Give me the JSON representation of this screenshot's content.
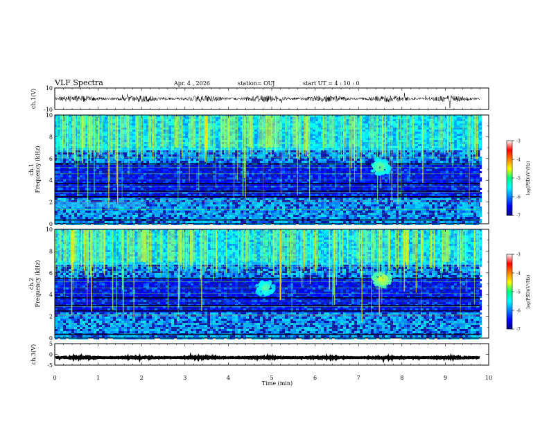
{
  "header": {
    "title": "VLF Spectra",
    "date": "Apr. 4 , 2026",
    "station": "station= OUJ",
    "start": "start  UT =   4 : 10 : 0"
  },
  "chart_data": [
    {
      "type": "line",
      "name": "ch1-waveform",
      "ylabel": "ch.1(V)",
      "ylim": [
        -10,
        10
      ],
      "yticks": [
        "10",
        "-10"
      ],
      "xlim": [
        0,
        10
      ],
      "trace_end": 9.8,
      "trace_level": 0
    },
    {
      "type": "heatmap",
      "name": "ch1-spectrogram",
      "ylabel": "ch.1\nFrequency (kHz)",
      "ylim": [
        0,
        10
      ],
      "yticks": [
        "0",
        "2",
        "4",
        "6",
        "8",
        "10"
      ],
      "xlim": [
        0,
        10
      ],
      "data_end": 9.8,
      "colorbar": {
        "label": "log(PSD)(V²/Hz)",
        "range": [
          -7,
          -3
        ],
        "ticks": [
          "-3",
          "-4",
          "-5",
          "-6",
          "-7"
        ]
      },
      "features": [
        {
          "kind": "blob",
          "t": 7.5,
          "f": 5.2,
          "intensity": 0.8
        },
        {
          "kind": "band",
          "f_low": 1.5,
          "f_high": 2.0,
          "t_end": 2.1
        }
      ]
    },
    {
      "type": "heatmap",
      "name": "ch2-spectrogram",
      "ylabel": "ch.2\nFrequency (kHz)",
      "ylim": [
        0,
        10
      ],
      "yticks": [
        "0",
        "2",
        "4",
        "6",
        "8",
        "10"
      ],
      "xlim": [
        0,
        10
      ],
      "data_end": 9.8,
      "colorbar": {
        "label": "log(PSD)(V²/Hz)",
        "range": [
          -7,
          -3
        ],
        "ticks": [
          "-3",
          "-4",
          "-5",
          "-6",
          "-7"
        ]
      },
      "features": [
        {
          "kind": "blob",
          "t": 7.55,
          "f": 5.4,
          "intensity": 0.95
        },
        {
          "kind": "blob",
          "t": 4.85,
          "f": 4.6,
          "intensity": 0.75
        },
        {
          "kind": "line",
          "t": 5.2,
          "f_low": 3.5,
          "f_high": 10
        }
      ]
    },
    {
      "type": "line",
      "name": "ch3-waveform",
      "ylabel": "ch.3(V)",
      "ylim": [
        -5,
        5
      ],
      "yticks": [
        "5",
        "0",
        "-5"
      ],
      "xlim": [
        0,
        10
      ],
      "trace_end": 9.8,
      "trace_level": -1.5
    }
  ],
  "x_axis": {
    "label": "Time (min)",
    "ticks": [
      "0",
      "1",
      "2",
      "3",
      "4",
      "5",
      "6",
      "7",
      "8",
      "9",
      "10"
    ]
  }
}
